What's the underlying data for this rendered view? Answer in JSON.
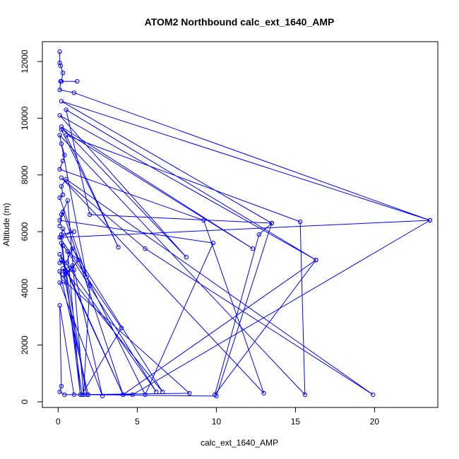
{
  "chart_data": {
    "type": "line",
    "title": "ATOM2 Northbound calc_ext_1640_AMP",
    "xlabel": "calc_ext_1640_AMP",
    "ylabel": "Altitude (m)",
    "xlim": [
      -1,
      24
    ],
    "ylim": [
      -200,
      12700
    ],
    "x_ticks": [
      0,
      5,
      10,
      15,
      20
    ],
    "y_ticks": [
      0,
      2000,
      4000,
      6000,
      8000,
      10000,
      12000
    ],
    "grid": false,
    "series_color": "#0000ff",
    "points": [
      [
        0.1,
        12350
      ],
      [
        0.1,
        11950
      ],
      [
        0.15,
        11850
      ],
      [
        0.3,
        11600
      ],
      [
        0.2,
        11300
      ],
      [
        1.2,
        11300
      ],
      [
        0.15,
        11300
      ],
      [
        0.1,
        11000
      ],
      [
        1.0,
        10900
      ],
      [
        23.5,
        6400
      ],
      [
        0.2,
        10600
      ],
      [
        13.5,
        6300
      ],
      [
        2.0,
        6600
      ],
      [
        0.5,
        10300
      ],
      [
        16.3,
        5000
      ],
      [
        0.1,
        10100
      ],
      [
        8.1,
        5100
      ],
      [
        0.2,
        9700
      ],
      [
        12.3,
        5400
      ],
      [
        0.2,
        9600
      ],
      [
        3.8,
        5450
      ],
      [
        0.5,
        9400
      ],
      [
        15.3,
        6350
      ],
      [
        15.6,
        250
      ],
      [
        0.1,
        9400
      ],
      [
        1.8,
        4400
      ],
      [
        0.2,
        9100
      ],
      [
        0.4,
        8700
      ],
      [
        0.3,
        8500
      ],
      [
        0.1,
        8200
      ],
      [
        9.2,
        6400
      ],
      [
        13.0,
        300
      ],
      [
        0.2,
        7900
      ],
      [
        5.5,
        5400
      ],
      [
        19.9,
        250
      ],
      [
        0.5,
        7850
      ],
      [
        0.2,
        7600
      ],
      [
        0.3,
        7300
      ],
      [
        0.1,
        7200
      ],
      [
        2.0,
        4100
      ],
      [
        1.6,
        250
      ],
      [
        0.6,
        7100
      ],
      [
        0.3,
        6700
      ],
      [
        0.2,
        6600
      ],
      [
        0.1,
        6400
      ],
      [
        9.8,
        5600
      ],
      [
        5.5,
        250
      ],
      [
        0.3,
        6100
      ],
      [
        0.2,
        5900
      ],
      [
        1.0,
        6000
      ],
      [
        0.1,
        5800
      ],
      [
        4.0,
        2600
      ],
      [
        1.5,
        250
      ],
      [
        0.2,
        5600
      ],
      [
        0.3,
        5500
      ],
      [
        0.6,
        5300
      ],
      [
        6.2,
        350
      ],
      [
        0.1,
        5200
      ],
      [
        4.1,
        250
      ],
      [
        0.2,
        5000
      ],
      [
        0.1,
        4900
      ],
      [
        0.5,
        4900
      ],
      [
        0.9,
        5400
      ],
      [
        6.6,
        350
      ],
      [
        0.3,
        4700
      ],
      [
        1.8,
        250
      ],
      [
        0.5,
        4600
      ],
      [
        0.3,
        4500
      ],
      [
        1.0,
        4650
      ],
      [
        2.8,
        200
      ],
      [
        0.1,
        4200
      ],
      [
        0.5,
        4200
      ],
      [
        8.3,
        300
      ],
      [
        1.0,
        250
      ],
      [
        0.1,
        3400
      ],
      [
        0.2,
        550
      ],
      [
        0.1,
        350
      ],
      [
        0.4,
        250
      ],
      [
        4.7,
        250
      ],
      [
        23.5,
        6400
      ],
      [
        0.2,
        5800
      ],
      [
        1.4,
        250
      ],
      [
        0.6,
        5300
      ],
      [
        1.3,
        5000
      ],
      [
        0.3,
        4350
      ],
      [
        0.9,
        4800
      ],
      [
        0.1,
        4600
      ],
      [
        1.9,
        250
      ],
      [
        10.0,
        200
      ],
      [
        13.5,
        6300
      ],
      [
        12.7,
        5900
      ],
      [
        9.9,
        250
      ],
      [
        16.3,
        5000
      ],
      [
        4.1,
        250
      ],
      [
        0.3,
        6700
      ],
      [
        0.1,
        6200
      ]
    ]
  }
}
